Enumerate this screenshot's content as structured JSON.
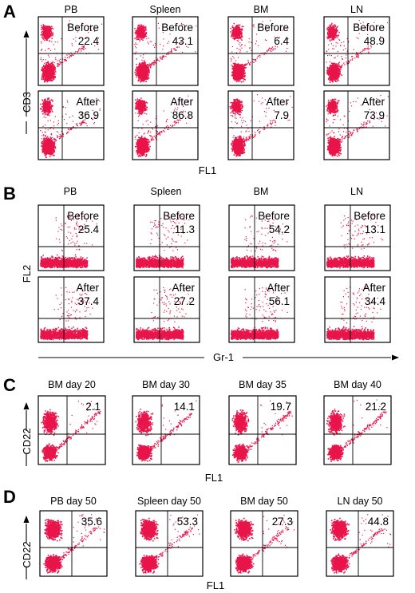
{
  "colors": {
    "dots": "#e8154a",
    "ink": "#000000",
    "background": "#ffffff"
  },
  "chart_data": [
    {
      "panel": "A",
      "type": "scatter",
      "columns": [
        "PB",
        "Spleen",
        "BM",
        "LN"
      ],
      "ylabel": "CD3",
      "xlabel": "FL1",
      "rows": [
        {
          "label": "Before",
          "values": [
            22.4,
            43.1,
            6.4,
            48.9
          ]
        },
        {
          "label": "After",
          "values": [
            36.9,
            86.8,
            7.9,
            73.9
          ]
        }
      ]
    },
    {
      "panel": "B",
      "type": "scatter",
      "columns": [
        "PB",
        "Spleen",
        "BM",
        "LN"
      ],
      "ylabel": "FL2",
      "xlabel": "Gr-1",
      "rows": [
        {
          "label": "Before",
          "values": [
            25.4,
            11.3,
            54.2,
            13.1
          ]
        },
        {
          "label": "After",
          "values": [
            37.4,
            27.2,
            56.1,
            34.4
          ]
        }
      ]
    },
    {
      "panel": "C",
      "type": "scatter",
      "columns": [
        "BM day 20",
        "BM day 30",
        "BM day 35",
        "BM day 40"
      ],
      "ylabel": "CD22",
      "xlabel": "FL1",
      "rows": [
        {
          "label": "",
          "values": [
            2.1,
            14.1,
            19.7,
            21.2
          ]
        }
      ]
    },
    {
      "panel": "D",
      "type": "scatter",
      "columns": [
        "PB day 50",
        "Spleen day 50",
        "BM day 50",
        "LN day 50"
      ],
      "ylabel": "CD22",
      "xlabel": "FL1",
      "rows": [
        {
          "label": "",
          "values": [
            35.6,
            53.3,
            27.3,
            44.8
          ]
        }
      ]
    }
  ]
}
